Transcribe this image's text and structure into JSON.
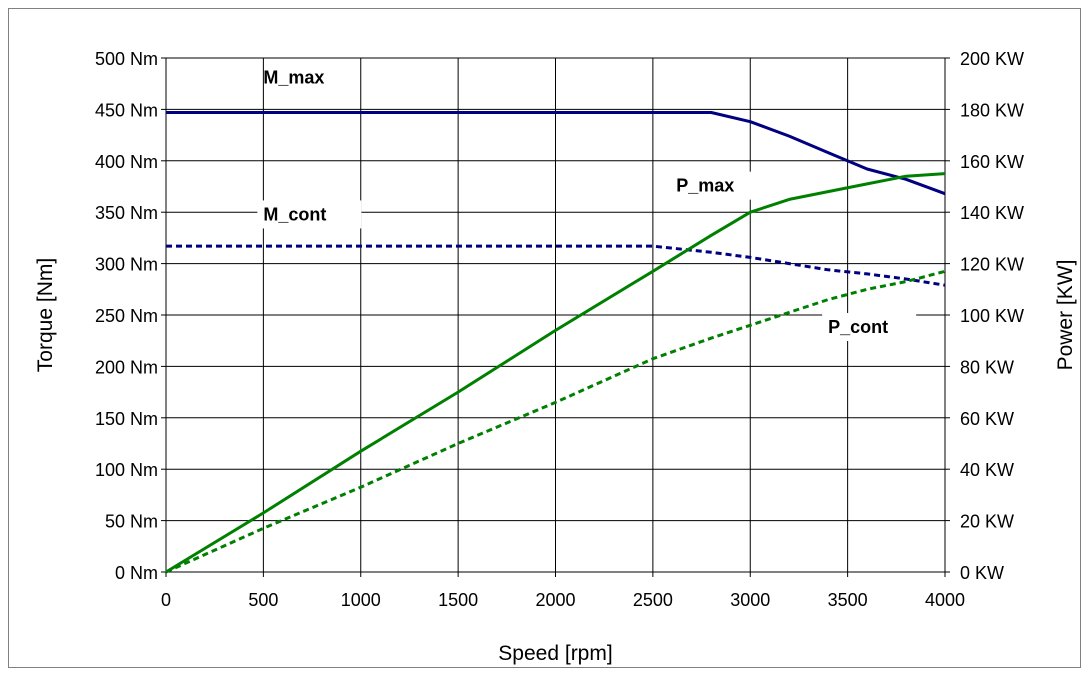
{
  "chart_data": {
    "type": "line",
    "title": "",
    "xlabel": "Speed [rpm]",
    "ylabel_left": "Torque [Nm]",
    "ylabel_right": "Power [KW]",
    "xlim": [
      0,
      4000
    ],
    "ylim_left": [
      0,
      500
    ],
    "ylim_right": [
      0,
      200
    ],
    "grid": true,
    "legend": "none",
    "x_ticks": [
      "0",
      "500",
      "1000",
      "1500",
      "2000",
      "2500",
      "3000",
      "3500",
      "4000"
    ],
    "y_left_ticks": [
      "0 Nm",
      "50 Nm",
      "100 Nm",
      "150 Nm",
      "200 Nm",
      "250 Nm",
      "300 Nm",
      "350 Nm",
      "400 Nm",
      "450 Nm",
      "500 Nm"
    ],
    "y_right_ticks": [
      "0 KW",
      "20 KW",
      "40 KW",
      "60 KW",
      "80 KW",
      "100 KW",
      "120 KW",
      "140 KW",
      "160 KW",
      "180 KW",
      "200 KW"
    ],
    "series": [
      {
        "name": "M_max",
        "axis": "left",
        "color": "#000080",
        "dash": "solid",
        "x": [
          0,
          500,
          1000,
          1500,
          2000,
          2500,
          2800,
          3000,
          3200,
          3400,
          3600,
          3800,
          4000
        ],
        "y": [
          447,
          447,
          447,
          447,
          447,
          447,
          447,
          438,
          424,
          408,
          392,
          382,
          368
        ]
      },
      {
        "name": "M_cont",
        "axis": "left",
        "color": "#000080",
        "dash": "dashed",
        "x": [
          0,
          500,
          1000,
          1500,
          2000,
          2500,
          2600,
          2800,
          3000,
          3200,
          3400,
          3600,
          3800,
          4000
        ],
        "y": [
          317,
          317,
          317,
          317,
          317,
          317,
          315,
          311,
          306,
          300,
          294,
          290,
          285,
          279
        ]
      },
      {
        "name": "P_max",
        "axis": "right",
        "color": "#008000",
        "dash": "solid",
        "x": [
          0,
          500,
          1000,
          1500,
          2000,
          2500,
          2800,
          3000,
          3200,
          3400,
          3600,
          3800,
          4000
        ],
        "y": [
          0,
          23,
          47,
          70,
          94,
          117,
          131,
          140,
          145,
          148,
          151,
          154,
          155
        ]
      },
      {
        "name": "P_cont",
        "axis": "right",
        "color": "#008000",
        "dash": "dashed",
        "x": [
          0,
          500,
          1000,
          1500,
          2000,
          2500,
          2800,
          3000,
          3200,
          3400,
          3600,
          3800,
          4000
        ],
        "y": [
          0,
          17,
          33,
          50,
          66,
          83,
          91,
          96,
          101,
          106,
          110,
          113,
          117
        ]
      }
    ],
    "annotations": [
      "M_max",
      "M_cont",
      "P_max",
      "P_cont"
    ]
  }
}
